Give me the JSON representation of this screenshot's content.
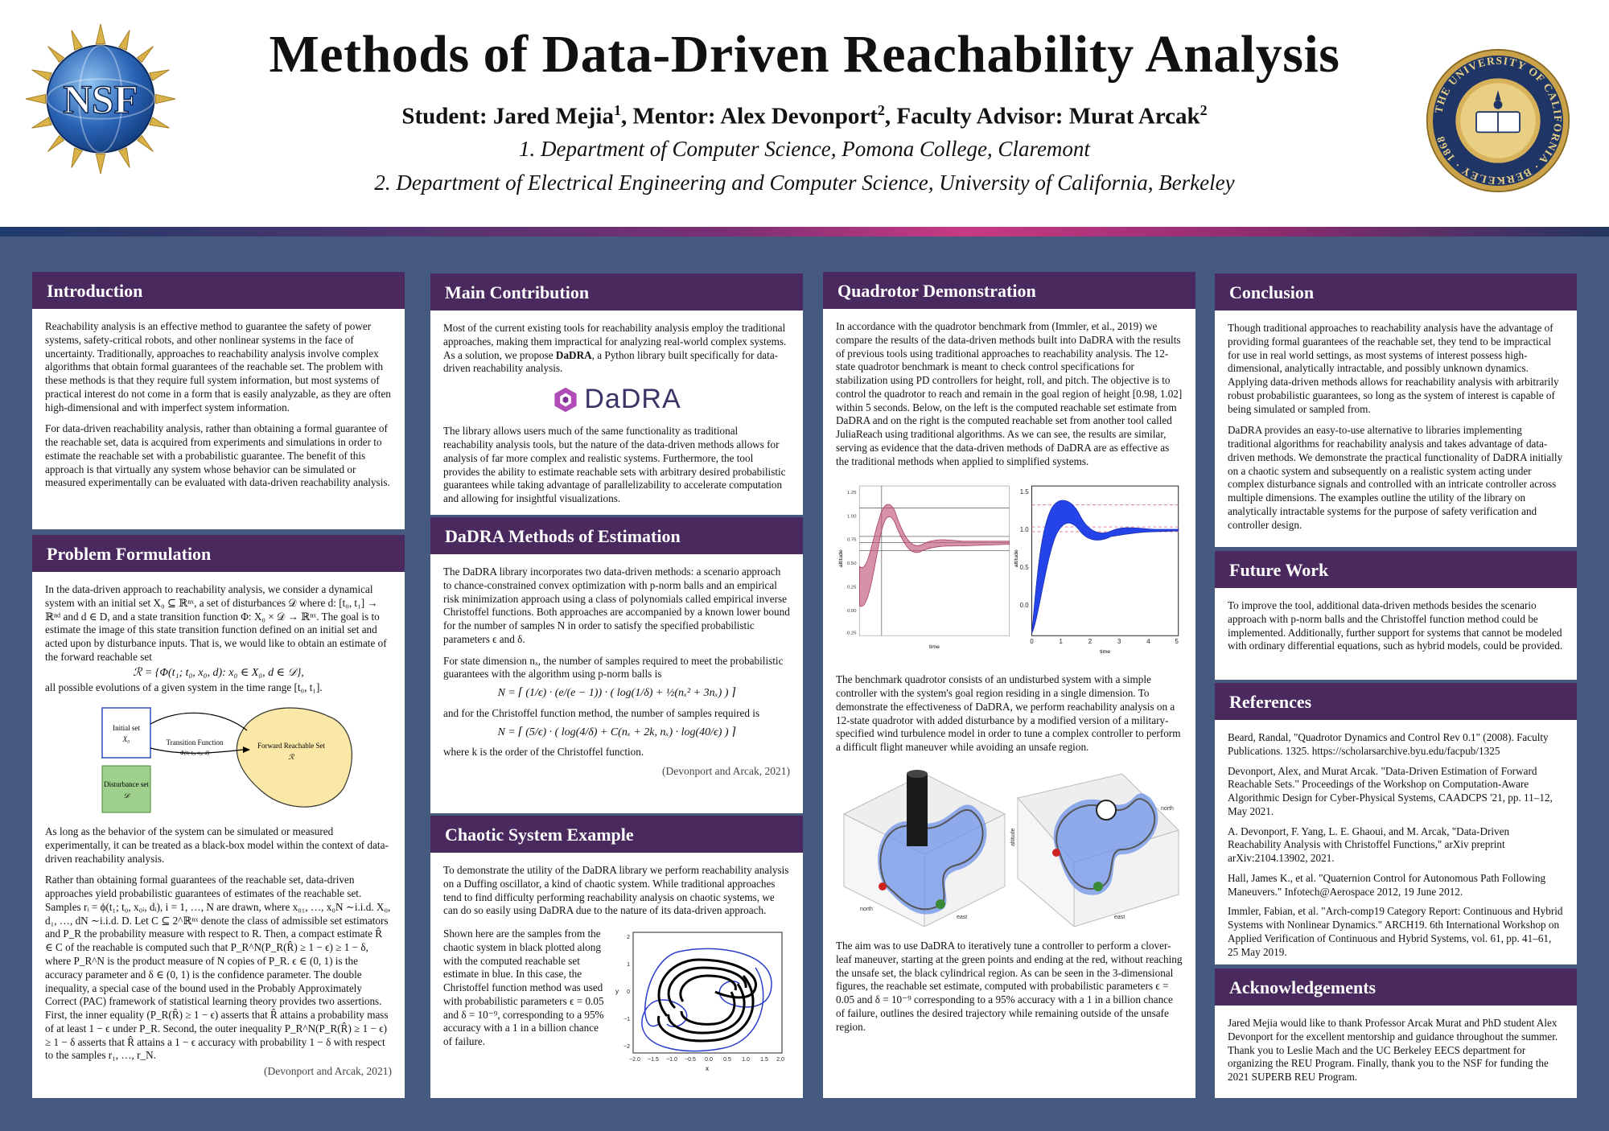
{
  "header": {
    "title": "Methods of Data-Driven Reachability Analysis",
    "authors": {
      "student_prefix": "Student: Jared Mejia",
      "student_sup": "1",
      "mentor_prefix": ", Mentor: Alex Devonport",
      "mentor_sup": "2",
      "advisor_prefix": ", Faculty Advisor: Murat Arcak",
      "advisor_sup": "2"
    },
    "affiliations": [
      "1.   Department of Computer Science, Pomona College, Claremont",
      "2.   Department of Electrical Engineering and Computer Science, University of California, Berkeley"
    ],
    "nsf_logo_text": "NSF",
    "ucb_seal_text": "THE UNIVERSITY OF CALIFORNIA · BERKELEY · 1868"
  },
  "colors": {
    "background": "#46597e",
    "section_header": "#4a2a5e",
    "stripe_accent": "#c83a84",
    "chart_pink": "#c2587e",
    "chart_blue": "#2443e8"
  },
  "introduction": {
    "heading": "Introduction",
    "p1": "Reachability analysis is an effective method to guarantee the safety of power systems, safety-critical robots, and other nonlinear systems in the face of uncertainty. Traditionally, approaches to reachability analysis involve complex algorithms that obtain formal guarantees of the reachable set. The problem with these methods is that they require full system information, but most systems of practical interest do not come in a form that is easily analyzable, as they are often high-dimensional and with imperfect system information.",
    "p2": "For data-driven reachability analysis, rather than obtaining a formal guarantee of the reachable set, data is acquired from experiments and simulations in order to estimate the reachable set with a probabilistic guarantee. The benefit of this approach is that virtually any system whose behavior can be simulated or measured experimentally can be evaluated with data-driven reachability analysis."
  },
  "problem": {
    "heading": "Problem Formulation",
    "p1": "In the data-driven approach to reachability analysis, we consider a dynamical system with an initial set X₀ ⊆ ℝⁿˣ, a set of disturbances 𝒟 where d: [t₀, t₁] → ℝⁿᵈ and d ∈ D, and a state transition function Φ: X₀ × 𝒟 → ℝⁿˣ. The goal is to estimate the image of this state transition function defined on an initial set and acted upon by disturbance inputs. That is, we would like to obtain an estimate of the forward reachable set",
    "eq": "ℛ = {Φ(t₁; t₀, x₀, d): x₀ ∈ X₀, d ∈ 𝒟},",
    "p1_end": "all possible evolutions of a given system in the time range [t₀, t₁].",
    "diagram": {
      "initial_set": "Initial set",
      "initial_sym": "X₀",
      "transition": "Transition Function",
      "transition_sym": "Φ(t; t₀, x₀, d)",
      "reachable": "Forward Reachable Set",
      "reachable_sym": "ℛ",
      "disturbance": "Disturbance set",
      "disturbance_sym": "𝒟"
    },
    "p2": "As long as the behavior of the system can be simulated or measured experimentally, it can be treated as a black-box model within the context of data-driven reachability analysis.",
    "p3": "Rather than obtaining formal guarantees of the reachable set, data-driven approaches yield probabilistic guarantees of estimates of the reachable set. Samples rᵢ = ϕ(t₁; t₀, x₀ᵢ, dᵢ), i = 1, …, N are drawn, where x₀₁, …, x₀N ∼i.i.d. X₀, d₁, …, dN ∼i.i.d. D. Let C ⊆ 2^ℝⁿˣ denote the class of admissible set estimators and P_R the probability measure with respect to R. Then, a compact estimate R̂ ∈ C of the reachable is computed such that P_R^N(P_R(R̂) ≥ 1 − ϵ) ≥ 1 − δ, where P_R^N is the product measure of N copies of P_R. ϵ ∈ (0, 1) is the accuracy parameter and δ ∈ (0, 1) is the confidence parameter. The double inequality, a special case of the bound used in the Probably Approximately Correct (PAC) framework of statistical learning theory provides two assertions. First, the inner equality (P_R(R̂) ≥ 1 − ϵ) asserts that R̂ attains a probability mass of at least 1 − ϵ under P_R. Second, the outer inequality P_R^N(P_R(R̂) ≥ 1 − ϵ) ≥ 1 − δ asserts that R̂ attains a 1 − ϵ accuracy with probability 1 − δ with respect to the samples r₁, …, r_N.",
    "cite": "(Devonport and Arcak, 2021)"
  },
  "contribution": {
    "heading": "Main Contribution",
    "p1_a": "Most of the current existing tools for reachability analysis employ the traditional approaches, making them impractical for analyzing real-world complex systems. As a solution, we propose ",
    "p1_b": "DaDRA",
    "p1_c": ", a Python library built specifically for data-driven reachability analysis.",
    "logo_text": "DaDRA",
    "p2": "The library allows users much of the same functionality as traditional reachability analysis tools, but the nature of the data-driven methods allows for analysis of far more complex and realistic systems. Furthermore, the tool provides the ability to estimate reachable sets with arbitrary desired probabilistic guarantees while taking advantage of parallelizability to accelerate computation and allowing for insightful visualizations."
  },
  "methods": {
    "heading": "DaDRA Methods of Estimation",
    "p1": "The DaDRA library incorporates two data-driven methods: a scenario approach to chance-constrained convex optimization with p-norm balls and an empirical risk minimization approach using a class of polynomials called empirical inverse Christoffel functions. Both approaches are accompanied by a known lower bound for the number of samples N in order to satisfy the specified probabilistic parameters ϵ and δ.",
    "p2": "For state dimension nₓ, the number of samples required to meet the probabilistic guarantees with the algorithm using p-norm balls is",
    "eq1": "N = ⌈ (1/ϵ) · (e/(e − 1)) · ( log(1/δ) + ½(nₓ² + 3nₓ) ) ⌉",
    "p3": "and for the Christoffel function method, the number of samples required is",
    "eq2": "N = ⌈ (5/ϵ) · ( log(4/δ) + C(nₓ + 2k, nₓ) · log(40/ϵ) ) ⌉",
    "p4": "where k is the order of the Christoffel function.",
    "cite": "(Devonport and Arcak, 2021)"
  },
  "chaotic": {
    "heading": "Chaotic System Example",
    "p1": "To demonstrate the utility of the DaDRA library we perform reachability analysis on a Duffing oscillator, a kind of chaotic system. While traditional approaches tend to find difficulty performing reachability analysis on chaotic systems, we can do so easily using DaDRA due to the nature of its data-driven approach.",
    "p2": "Shown here are the samples from the chaotic system in black plotted along with the computed reachable set estimate in blue. In this case, the Christoffel function method was used with probabilistic parameters ϵ = 0.05 and δ = 10⁻⁹, corresponding to a 95% accuracy with a 1 in a billion chance of failure.",
    "plot": {
      "xlabel": "x",
      "ylabel": "y",
      "xticks": [
        "−2.0",
        "−1.5",
        "−1.0",
        "−0.5",
        "0.0",
        "0.5",
        "1.0",
        "1.5",
        "2.0"
      ],
      "yticks": [
        "−2",
        "−1",
        "0",
        "1",
        "2"
      ]
    }
  },
  "quadrotor": {
    "heading": "Quadrotor Demonstration",
    "p1": "In accordance with the quadrotor benchmark from (Immler, et al., 2019) we compare the results of the data-driven methods built into DaDRA with the results of previous tools using traditional approaches to reachability analysis. The 12-state quadrotor benchmark is meant to check control specifications for stabilization using PD controllers for height, roll, and pitch. The objective is to control the quadrotor to reach and remain in the goal region of height [0.98, 1.02] within 5 seconds. Below, on the left is the computed reachable set estimate from DaDRA and on the right is the computed reachable set from another tool called JuliaReach using traditional algorithms. As we can see, the results are similar, serving as evidence that the data-driven methods of DaDRA are as effective as the traditional methods when applied to simplified systems.",
    "p2": "The benchmark quadrotor consists of an undisturbed system with a simple controller with the system's goal region residing in a single dimension. To demonstrate the effectiveness of DaDRA, we perform reachability analysis on a 12-state quadrotor with added disturbance by a modified version of a military-specified wind turbulence model in order to tune a complex controller to perform a difficult flight maneuver while avoiding an unsafe region.",
    "p3": "The aim was to use DaDRA to iteratively tune a controller to perform a clover-leaf maneuver, starting at the green points and ending at the red, without reaching the unsafe set, the black cylindrical region. As can be seen in the 3-dimensional figures, the reachable set estimate, computed with probabilistic parameters ϵ = 0.05 and δ = 10⁻⁹ corresponding to a 95% accuracy with a 1 in a billion chance of failure, outlines the desired trajectory while remaining outside of the unsafe region.",
    "left_plot": {
      "xlabel": "time",
      "ylabel": "altitude",
      "yticks": [
        "1.25",
        "1.00",
        "0.75",
        "0.50",
        "0.25",
        "0.00",
        "-0.25"
      ]
    },
    "right_plot": {
      "xlabel": "time",
      "ylabel": "altitude",
      "yticks": [
        "1.5",
        "1.0",
        "0.5",
        "0.0"
      ],
      "xticks": [
        "0",
        "1",
        "2",
        "3",
        "4",
        "5"
      ]
    },
    "plot3d_left": {
      "axis_x": "north",
      "axis_y": "east"
    },
    "plot3d_right": {
      "axis_x": "north",
      "axis_y": "east",
      "axis_z": "altitude"
    }
  },
  "conclusion": {
    "heading": "Conclusion",
    "p1": "Though traditional approaches to reachability analysis have the advantage of providing formal guarantees of the reachable set, they tend to be impractical for use in real world settings, as most systems of interest possess high-dimensional, analytically intractable, and possibly unknown dynamics. Applying data-driven methods allows for reachability analysis with arbitrarily robust probabilistic guarantees, so long as the system of interest is capable of being simulated or sampled from.",
    "p2": "DaDRA provides an easy-to-use alternative to libraries implementing traditional algorithms for reachability analysis and takes advantage of data-driven methods. We demonstrate the practical functionality of DaDRA initially on a chaotic system and subsequently on a realistic system acting under complex disturbance signals and controlled with an intricate controller across multiple dimensions. The examples outline the utility of the library on analytically intractable systems for the purpose of safety verification and controller design."
  },
  "future": {
    "heading": "Future Work",
    "p1": "To improve the tool, additional data-driven methods besides the scenario approach with p-norm balls and the Christoffel function method could be implemented. Additionally, further support for systems that cannot be modeled with ordinary differential equations, such as hybrid models, could be provided."
  },
  "references": {
    "heading": "References",
    "items": [
      "Beard, Randal, \"Quadrotor Dynamics and Control Rev 0.1\" (2008). Faculty Publications. 1325. https://scholarsarchive.byu.edu/facpub/1325",
      "Devonport, Alex, and Murat Arcak. \"Data-Driven Estimation of Forward Reachable Sets.\" Proceedings of the Workshop on Computation-Aware Algorithmic Design for Cyber-Physical Systems, CAADCPS '21, pp. 11–12, May 2021.",
      "A. Devonport, F. Yang, L. E. Ghaoui, and M. Arcak, \"Data-Driven Reachability Analysis with Christoffel Functions,\" arXiv preprint arXiv:2104.13902, 2021.",
      "Hall, James K., et al. \"Quaternion Control for Autonomous Path Following Maneuvers.\" Infotech@Aerospace 2012, 19 June 2012.",
      "Immler, Fabian, et al. \"Arch-comp19 Category Report: Continuous and Hybrid Systems with Nonlinear Dynamics.\" ARCH19. 6th International Workshop on Applied Verification of Continuous and Hybrid Systems, vol. 61, pp. 41–61, 25 May 2019."
    ]
  },
  "acknowledgements": {
    "heading": "Acknowledgements",
    "p1": "Jared Mejia would like to thank Professor Arcak Murat and PhD student Alex Devonport for the excellent mentorship and guidance throughout the summer. Thank you to Leslie Mach and the UC Berkeley EECS department for organizing the REU Program. Finally, thank you to the NSF for funding the 2021 SUPERB REU Program."
  }
}
